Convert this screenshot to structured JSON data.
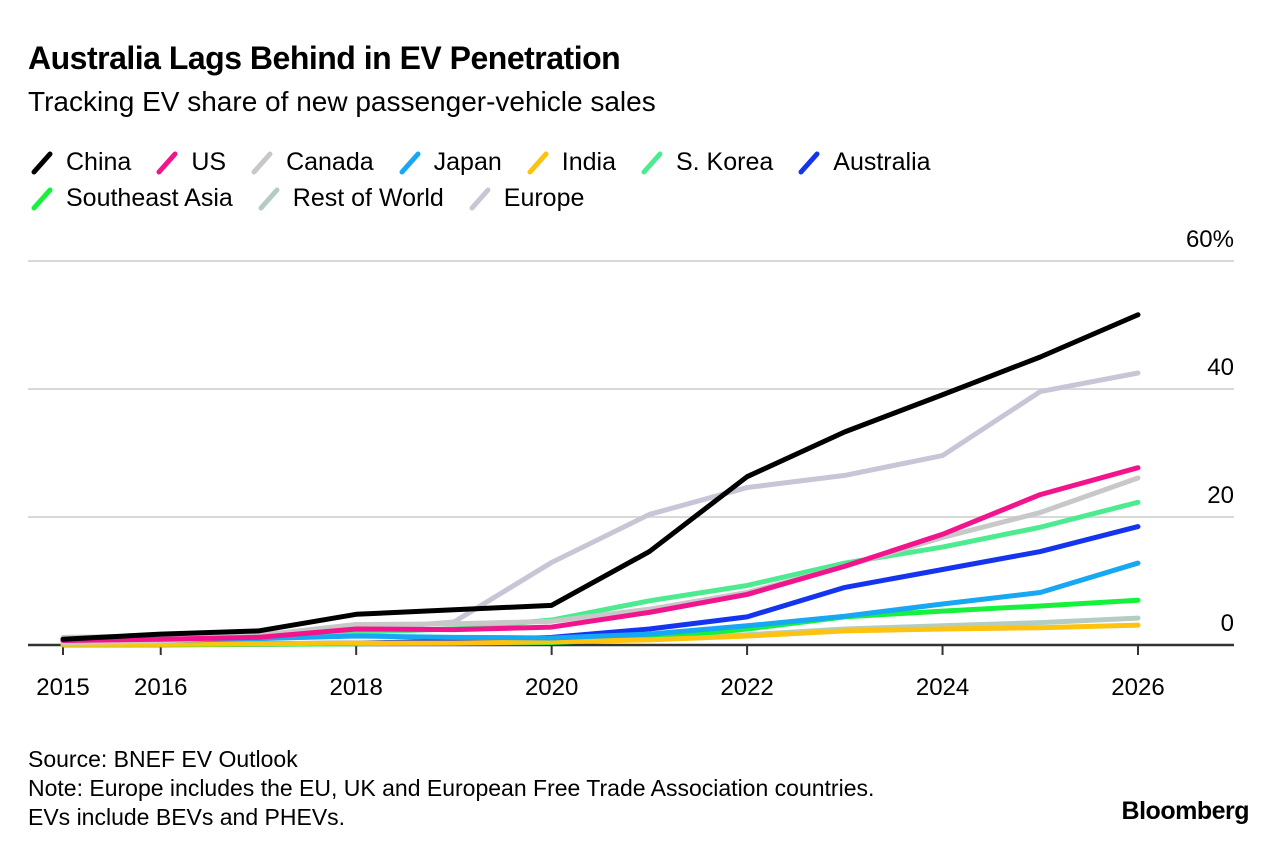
{
  "header": {
    "title": "Australia Lags Behind in EV Penetration",
    "subtitle": "Tracking EV share of new passenger-vehicle sales"
  },
  "footer": {
    "source": "Source: BNEF EV Outlook",
    "note_line1": "Note: Europe includes the EU, UK and European Free Trade Association countries.",
    "note_line2": "EVs include BEVs and PHEVs.",
    "brand": "Bloomberg"
  },
  "chart_data": {
    "type": "line",
    "title": "Australia Lags Behind in EV Penetration",
    "subtitle": "Tracking EV share of new passenger-vehicle sales",
    "xlabel": "",
    "ylabel": "",
    "x": [
      2015,
      2016,
      2017,
      2018,
      2019,
      2020,
      2021,
      2022,
      2023,
      2024,
      2025,
      2026
    ],
    "x_ticks": [
      "2015",
      "2016",
      "2018",
      "2020",
      "2022",
      "2024",
      "2026"
    ],
    "y_ticks": [
      "0",
      "20",
      "40",
      "60%"
    ],
    "ylim": [
      0,
      60
    ],
    "grid": true,
    "y_axis_side": "right",
    "legend_position": "top",
    "series": [
      {
        "name": "China",
        "color": "#000000",
        "values": [
          0.9,
          1.7,
          2.2,
          4.8,
          5.5,
          6.2,
          14.6,
          26.3,
          33.3,
          39.1,
          45.0,
          51.6
        ]
      },
      {
        "name": "US",
        "color": "#f2148c",
        "values": [
          0.7,
          0.9,
          1.2,
          2.5,
          2.4,
          2.8,
          5.1,
          7.9,
          12.3,
          17.3,
          23.5,
          27.7
        ]
      },
      {
        "name": "Canada",
        "color": "#c8c8c8",
        "values": [
          0.4,
          0.6,
          1.5,
          3.2,
          3.3,
          3.7,
          5.6,
          8.2,
          12.3,
          16.8,
          20.7,
          26.1
        ]
      },
      {
        "name": "Japan",
        "color": "#16a8f2",
        "values": [
          0.6,
          0.7,
          1.0,
          1.4,
          1.2,
          1.1,
          1.7,
          3.0,
          4.5,
          6.4,
          8.2,
          12.8
        ]
      },
      {
        "name": "India",
        "color": "#ffc20e",
        "values": [
          0.1,
          0.1,
          0.2,
          0.3,
          0.3,
          0.5,
          0.8,
          1.4,
          2.2,
          2.5,
          2.7,
          3.1
        ]
      },
      {
        "name": "S. Korea",
        "color": "#4ceb8f",
        "values": [
          0.3,
          0.4,
          1.0,
          2.0,
          2.5,
          3.9,
          6.9,
          9.3,
          12.8,
          15.3,
          18.4,
          22.3
        ]
      },
      {
        "name": "Australia",
        "color": "#1434f0",
        "values": [
          0.2,
          0.2,
          0.2,
          0.3,
          0.6,
          1.2,
          2.5,
          4.4,
          9.0,
          11.8,
          14.6,
          18.5
        ]
      },
      {
        "name": "Southeast Asia",
        "color": "#16f23c",
        "values": [
          0.0,
          0.0,
          0.1,
          0.2,
          0.3,
          0.4,
          1.0,
          2.5,
          4.4,
          5.3,
          6.1,
          7.0
        ]
      },
      {
        "name": "Rest of World",
        "color": "#b4cdc3",
        "values": [
          0.1,
          0.1,
          0.2,
          0.3,
          0.4,
          0.5,
          0.9,
          1.6,
          2.5,
          3.0,
          3.5,
          4.2
        ]
      },
      {
        "name": "Europe",
        "color": "#c6c6d6",
        "values": [
          1.2,
          1.4,
          1.7,
          2.4,
          3.6,
          12.9,
          20.4,
          24.6,
          26.5,
          29.6,
          39.6,
          42.5
        ]
      }
    ]
  },
  "legend_rows": [
    [
      0,
      1,
      2,
      3,
      4,
      5,
      6
    ],
    [
      7,
      8,
      9
    ]
  ]
}
